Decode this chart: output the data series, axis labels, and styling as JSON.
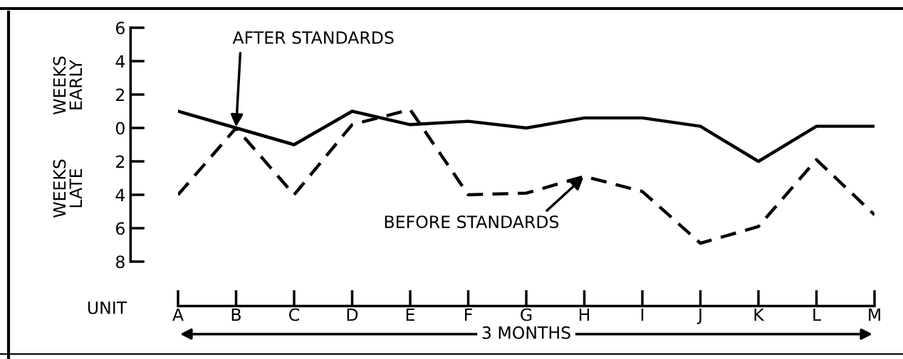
{
  "chart_data": {
    "type": "line",
    "categories": [
      "A",
      "B",
      "C",
      "D",
      "E",
      "F",
      "G",
      "H",
      "I",
      "J",
      "K",
      "L",
      "M"
    ],
    "series": [
      {
        "color": "#000000",
        "line_style": "solid",
        "values": [
          1.0,
          0.0,
          -1.0,
          1.0,
          0.2,
          0.4,
          0.0,
          0.6,
          0.6,
          0.1,
          -2.0,
          0.1,
          0.1
        ]
      },
      {
        "color": "#000000",
        "line_style": "dashed",
        "values": [
          -4.0,
          0.0,
          -4.0,
          0.2,
          1.1,
          -4.0,
          -3.9,
          -2.9,
          -3.8,
          -6.9,
          -5.9,
          -1.9,
          -5.2
        ]
      }
    ],
    "ylim": [
      -8,
      6
    ],
    "yticks": [
      6,
      4,
      2,
      0,
      {
        "value": -2,
        "label": "2"
      },
      {
        "value": -4,
        "label": "4"
      },
      {
        "value": -6,
        "label": "6"
      },
      {
        "value": -8,
        "label": "8"
      }
    ],
    "xlabel": "3 MONTHS",
    "annotations": [
      {
        "text": "AFTER STANDARDS",
        "x": "B",
        "y": 0.0
      },
      {
        "text": "BEFORE STANDARDS",
        "x": "H",
        "y": -2.9
      },
      "WEEKS\nEARLY",
      "WEEKS\nLATE",
      "UNIT"
    ],
    "grid": false,
    "legend": false,
    "marker": "none"
  }
}
